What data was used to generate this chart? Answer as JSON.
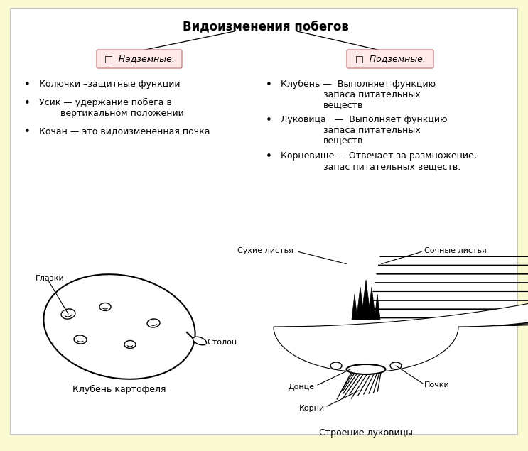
{
  "title": "Видоизменения побегов",
  "bg_outer": "#FAFAD2",
  "bg_inner": "#FFFFFF",
  "border_color": "#BBBBBB",
  "title_fontsize": 12,
  "left_box_label": "□  Надземные.",
  "right_box_label": "□  Подземные.",
  "left_bullet1": "Колючки –защитные функции",
  "left_bullet2_line1": "Усик — удержание побега в",
  "left_bullet2_line2": "вертикальном положении",
  "left_bullet3": "Кочан — это видоизмененная почка",
  "right_bullet1_line1": "Клубень —  Выполняет функцию",
  "right_bullet1_line2": "запаса питательных",
  "right_bullet1_line3": "веществ",
  "right_bullet2_line1": "Луковица   —  Выполняет функцию",
  "right_bullet2_line2": "запаса питательных",
  "right_bullet2_line3": "веществ",
  "right_bullet3_line1": "Корневище — Отвечает за размножение,",
  "right_bullet3_line2": "запас питательных веществ.",
  "potato_label": "Клубень картофеля",
  "onion_label": "Строение луковицы",
  "glazki_label": "Глазки",
  "stolon_label": "Столон",
  "sukhie_label": "Сухие листья",
  "sochnye_label": "Сочные листья",
  "dontse_label": "Донце",
  "korni_label": "Корни",
  "pochki_label": "Почки",
  "box_fill": "#FFE8E8",
  "box_edge": "#CC8888"
}
